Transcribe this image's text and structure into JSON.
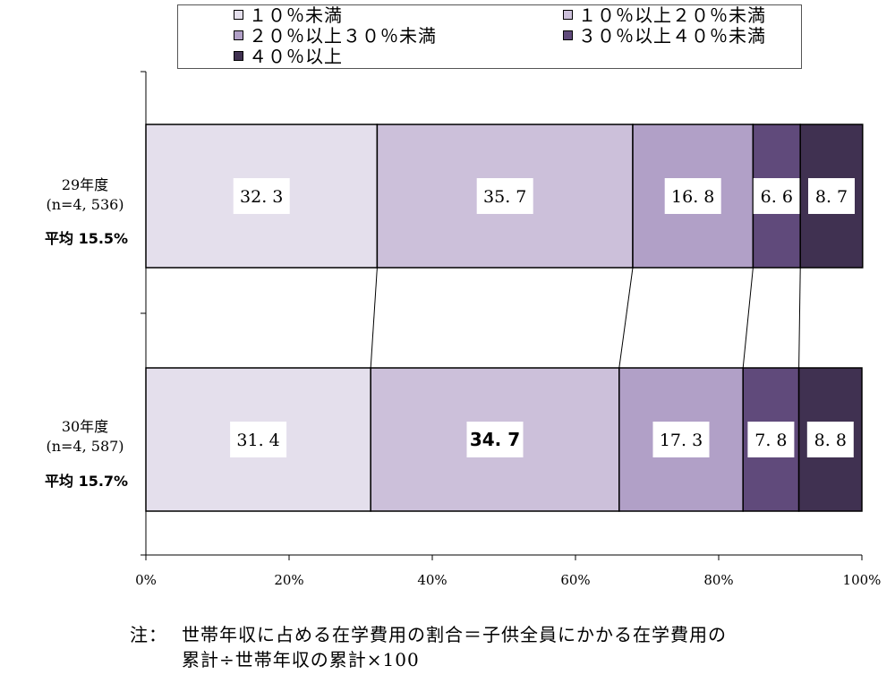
{
  "chart_data": {
    "type": "bar",
    "orientation": "horizontal",
    "stacked": "percent",
    "categories": [
      {
        "label": "29年度",
        "n": "(n=4, 536)",
        "avg": "平均 15.5%"
      },
      {
        "label": "30年度",
        "n": "(n=4, 587)",
        "avg": "平均 15.7%"
      }
    ],
    "series": [
      {
        "name": "１０％未満",
        "color": "#e4dfec",
        "values": [
          32.3,
          31.4
        ],
        "labels": [
          "32. 3",
          "31. 4"
        ]
      },
      {
        "name": "１０％以上２０％未満",
        "color": "#ccc0da",
        "values": [
          35.7,
          34.7
        ],
        "labels": [
          "35. 7",
          "34. 7"
        ]
      },
      {
        "name": "２０％以上３０％未満",
        "color": "#b1a0c7",
        "values": [
          16.8,
          17.3
        ],
        "labels": [
          "16. 8",
          "17. 3"
        ]
      },
      {
        "name": "３０％以上４０％未満",
        "color": "#604a7b",
        "values": [
          6.6,
          7.8
        ],
        "labels": [
          "6. 6",
          "7. 8"
        ]
      },
      {
        "name": "４０％以上",
        "color": "#403151",
        "values": [
          8.7,
          8.8
        ],
        "labels": [
          "8. 7",
          "8. 8"
        ]
      }
    ],
    "emphasized_label": {
      "series": 1,
      "category": 1
    },
    "xlim": [
      0,
      100
    ],
    "x_ticks": [
      "0%",
      "20%",
      "40%",
      "60%",
      "80%",
      "100%"
    ],
    "grid": false,
    "legend_position": "top",
    "connector_lines": true
  },
  "note": {
    "prefix": "注：",
    "line1": "世帯年収に占める在学費用の割合＝子供全員にかかる在学費用の",
    "line2": "累計÷世帯年収の累計×100"
  }
}
